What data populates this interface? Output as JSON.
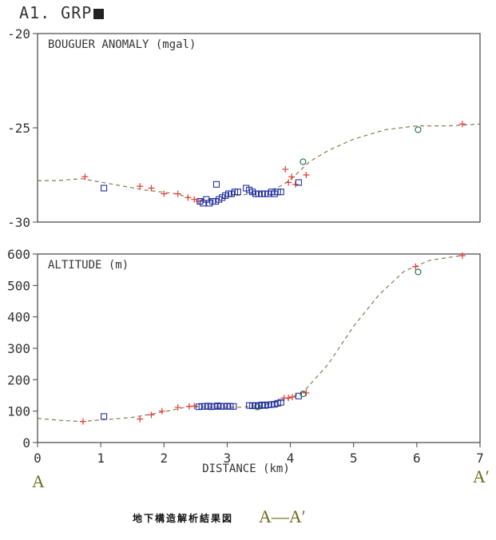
{
  "header": {
    "title": "A1. GRP"
  },
  "footer": {
    "caption": "地下構造解析結果図",
    "section": "A—A′",
    "label_left": "A",
    "label_right": "A′"
  },
  "colors": {
    "observed_plus": "#e83a2c",
    "square_marker": "#2230a0",
    "circle_marker": "#1f6b4a",
    "dashed_line": "#8a7a55",
    "axes": "#444444",
    "text": "#333333"
  },
  "chart_data": [
    {
      "type": "scatter",
      "title": "BOUGUER ANOMALY (mgal)",
      "xlabel": "",
      "ylabel": "",
      "xlim": [
        0,
        7
      ],
      "ylim": [
        -30,
        -20
      ],
      "yticks": [
        -30,
        -25,
        -20
      ],
      "ytick_labels": [
        "-30",
        "-25",
        "-20"
      ],
      "grid": false,
      "series": [
        {
          "marker": "dashed-line",
          "points": [
            [
              0.0,
              -27.8
            ],
            [
              0.3,
              -27.8
            ],
            [
              0.7,
              -27.7
            ],
            [
              1.2,
              -28.0
            ],
            [
              1.7,
              -28.3
            ],
            [
              2.2,
              -28.5
            ],
            [
              2.5,
              -28.8
            ],
            [
              2.8,
              -28.8
            ],
            [
              3.1,
              -28.6
            ],
            [
              3.4,
              -28.5
            ],
            [
              3.7,
              -28.3
            ],
            [
              3.9,
              -28.0
            ],
            [
              4.05,
              -27.6
            ],
            [
              4.3,
              -26.8
            ],
            [
              4.6,
              -26.2
            ],
            [
              5.0,
              -25.6
            ],
            [
              5.5,
              -25.1
            ],
            [
              6.0,
              -24.9
            ],
            [
              6.5,
              -24.9
            ],
            [
              7.0,
              -24.8
            ]
          ]
        },
        {
          "marker": "plus",
          "points": [
            [
              0.75,
              -27.6
            ],
            [
              1.62,
              -28.1
            ],
            [
              1.8,
              -28.2
            ],
            [
              2.0,
              -28.5
            ],
            [
              2.22,
              -28.5
            ],
            [
              2.38,
              -28.7
            ],
            [
              2.48,
              -28.8
            ],
            [
              2.55,
              -28.9
            ],
            [
              3.92,
              -27.2
            ],
            [
              3.97,
              -27.9
            ],
            [
              4.02,
              -27.6
            ],
            [
              4.08,
              -28.0
            ],
            [
              4.25,
              -27.5
            ],
            [
              6.72,
              -24.8
            ]
          ]
        },
        {
          "marker": "square",
          "points": [
            [
              1.05,
              -28.2
            ],
            [
              2.57,
              -28.9
            ],
            [
              2.62,
              -29.0
            ],
            [
              2.67,
              -28.8
            ],
            [
              2.72,
              -29.0
            ],
            [
              2.77,
              -28.9
            ],
            [
              2.82,
              -28.9
            ],
            [
              2.87,
              -28.8
            ],
            [
              2.92,
              -28.7
            ],
            [
              2.97,
              -28.6
            ],
            [
              3.02,
              -28.5
            ],
            [
              3.07,
              -28.5
            ],
            [
              3.12,
              -28.4
            ],
            [
              3.17,
              -28.4
            ],
            [
              2.83,
              -28.0
            ],
            [
              3.3,
              -28.2
            ],
            [
              3.35,
              -28.3
            ],
            [
              3.4,
              -28.4
            ],
            [
              3.45,
              -28.5
            ],
            [
              3.5,
              -28.5
            ],
            [
              3.55,
              -28.5
            ],
            [
              3.6,
              -28.5
            ],
            [
              3.65,
              -28.5
            ],
            [
              3.7,
              -28.4
            ],
            [
              3.75,
              -28.5
            ],
            [
              3.8,
              -28.4
            ],
            [
              3.85,
              -28.4
            ],
            [
              4.13,
              -27.9
            ]
          ]
        },
        {
          "marker": "circle",
          "points": [
            [
              4.2,
              -26.8
            ],
            [
              6.02,
              -25.1
            ]
          ]
        }
      ]
    },
    {
      "type": "scatter",
      "title": "ALTITUDE (m)",
      "xlabel": "DISTANCE (km)",
      "ylabel": "",
      "xlim": [
        0,
        7
      ],
      "ylim": [
        0,
        600
      ],
      "xticks": [
        0,
        1,
        2,
        3,
        4,
        5,
        6,
        7
      ],
      "xtick_labels": [
        "0",
        "1",
        "2",
        "3",
        "4",
        "5",
        "6",
        "7"
      ],
      "yticks": [
        0,
        100,
        200,
        300,
        400,
        500,
        600
      ],
      "ytick_labels": [
        "0",
        "100",
        "200",
        "300",
        "400",
        "500",
        "600"
      ],
      "grid": false,
      "series": [
        {
          "marker": "dashed-line",
          "points": [
            [
              0.0,
              77
            ],
            [
              0.4,
              70
            ],
            [
              0.7,
              67
            ],
            [
              1.0,
              72
            ],
            [
              1.5,
              80
            ],
            [
              2.0,
              98
            ],
            [
              2.4,
              115
            ],
            [
              2.8,
              113
            ],
            [
              3.2,
              112
            ],
            [
              3.6,
              120
            ],
            [
              3.9,
              135
            ],
            [
              4.2,
              160
            ],
            [
              4.6,
              250
            ],
            [
              5.0,
              370
            ],
            [
              5.4,
              470
            ],
            [
              5.8,
              545
            ],
            [
              6.2,
              580
            ],
            [
              6.7,
              595
            ]
          ]
        },
        {
          "marker": "plus",
          "points": [
            [
              0.72,
              67
            ],
            [
              1.62,
              75
            ],
            [
              1.8,
              88
            ],
            [
              1.97,
              100
            ],
            [
              2.22,
              112
            ],
            [
              2.4,
              115
            ],
            [
              2.48,
              116
            ],
            [
              3.9,
              142
            ],
            [
              3.97,
              142
            ],
            [
              4.03,
              145
            ],
            [
              4.25,
              158
            ],
            [
              5.98,
              560
            ],
            [
              6.72,
              595
            ]
          ]
        },
        {
          "marker": "square",
          "points": [
            [
              1.05,
              83
            ],
            [
              2.55,
              114
            ],
            [
              2.6,
              115
            ],
            [
              2.65,
              115
            ],
            [
              2.7,
              116
            ],
            [
              2.75,
              114
            ],
            [
              2.8,
              115
            ],
            [
              2.85,
              117
            ],
            [
              2.9,
              115
            ],
            [
              2.95,
              115
            ],
            [
              3.0,
              116
            ],
            [
              3.05,
              115
            ],
            [
              3.1,
              115
            ],
            [
              3.35,
              118
            ],
            [
              3.4,
              117
            ],
            [
              3.45,
              118
            ],
            [
              3.5,
              117
            ],
            [
              3.55,
              120
            ],
            [
              3.6,
              118
            ],
            [
              3.65,
              120
            ],
            [
              3.7,
              121
            ],
            [
              3.75,
              122
            ],
            [
              3.8,
              125
            ],
            [
              3.85,
              128
            ],
            [
              4.13,
              148
            ]
          ]
        },
        {
          "marker": "circle",
          "points": [
            [
              3.48,
              113
            ],
            [
              4.2,
              155
            ],
            [
              6.02,
              543
            ]
          ]
        }
      ]
    }
  ]
}
